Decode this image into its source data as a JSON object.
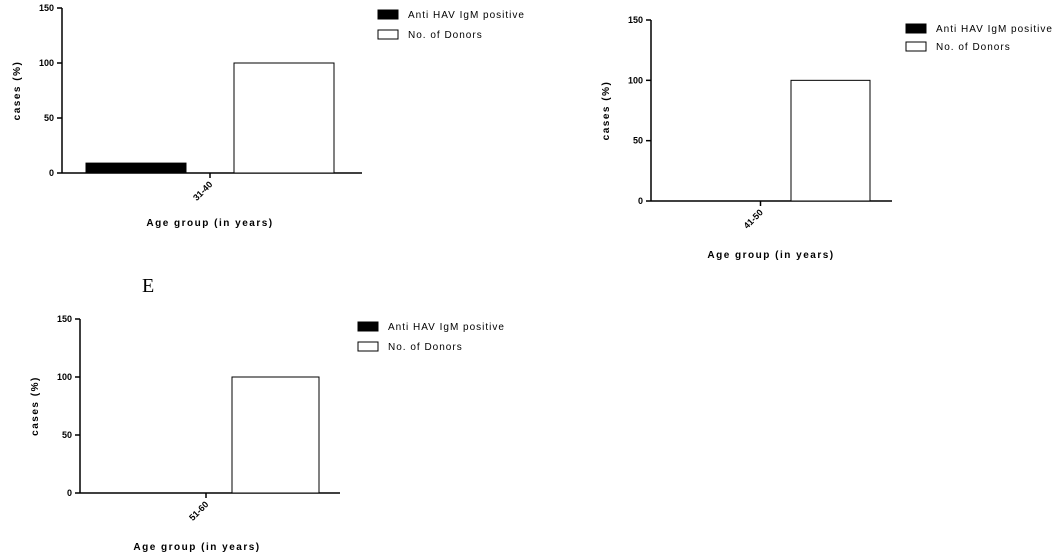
{
  "panel_letter": "E",
  "chart_data": [
    {
      "type": "bar",
      "categories": [
        "31-40"
      ],
      "series": [
        {
          "name": "Anti HAV IgM positive",
          "values": [
            9
          ],
          "color": "#000000"
        },
        {
          "name": "No. of Donors",
          "values": [
            100
          ],
          "color": "#ffffff"
        }
      ],
      "xlabel": "Age group (in years)",
      "ylabel": "cases (%)",
      "ylim": [
        0,
        150
      ],
      "yticks": [
        "0",
        "50",
        "100",
        "150"
      ],
      "legend_position": "top-right",
      "grid": false
    },
    {
      "type": "bar",
      "categories": [
        "41-50"
      ],
      "series": [
        {
          "name": "Anti HAV IgM positive",
          "values": [
            0
          ],
          "color": "#000000"
        },
        {
          "name": "No. of Donors",
          "values": [
            100
          ],
          "color": "#ffffff"
        }
      ],
      "xlabel": "Age group (in years)",
      "ylabel": "cases (%)",
      "ylim": [
        0,
        150
      ],
      "yticks": [
        "0",
        "50",
        "100",
        "150"
      ],
      "legend_position": "top-right",
      "grid": false
    },
    {
      "type": "bar",
      "categories": [
        "51-60"
      ],
      "series": [
        {
          "name": "Anti HAV IgM positive",
          "values": [
            0
          ],
          "color": "#000000"
        },
        {
          "name": "No. of Donors",
          "values": [
            100
          ],
          "color": "#ffffff"
        }
      ],
      "xlabel": "Age group (in years)",
      "ylabel": "cases (%)",
      "ylim": [
        0,
        150
      ],
      "yticks": [
        "0",
        "50",
        "100",
        "150"
      ],
      "legend_position": "top-right",
      "grid": false
    }
  ]
}
